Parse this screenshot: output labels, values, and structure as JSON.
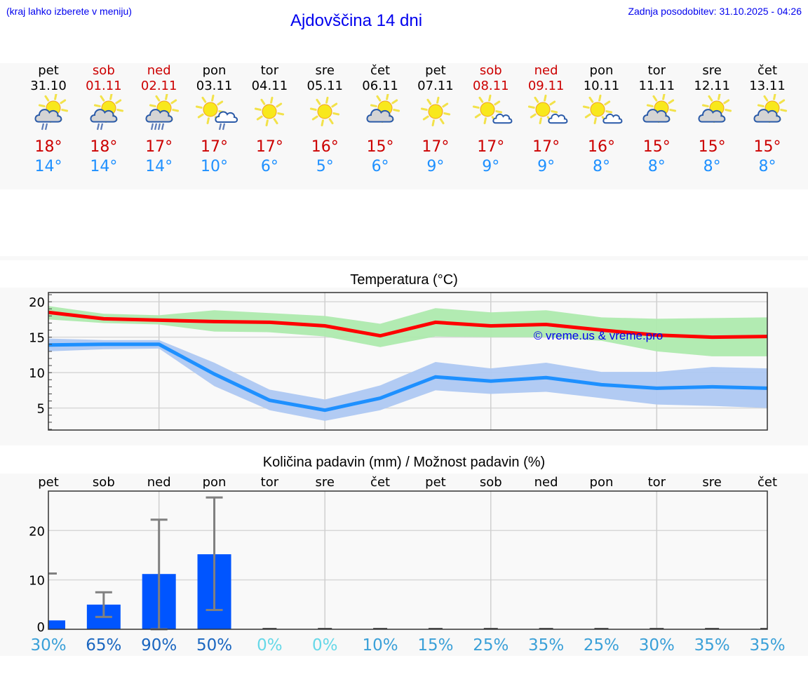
{
  "header": {
    "menu_hint": "(kraj lahko izberete v meniju)",
    "title": "Ajdovščina 14 dni",
    "last_update": "Zadnja posodobitev: 31.10.2025 - 04:26"
  },
  "colors": {
    "link_blue": "#0000ee",
    "weekend_red": "#cc0000",
    "tmax_red": "#cc0000",
    "tmin_blue": "#1e90ff",
    "max_line": "#ff0000",
    "max_band": "#aeeaae",
    "min_line": "#1e90ff",
    "min_band": "#aec8f2",
    "rain_bar": "#0055ff",
    "error_bar": "#808080"
  },
  "days": [
    {
      "name": "pet",
      "date": "31.10",
      "weekend": false,
      "icon": "partly-cloudy-light-rain-icon",
      "tmax": "18°",
      "tmin": "14°"
    },
    {
      "name": "sob",
      "date": "01.11",
      "weekend": true,
      "icon": "partly-cloudy-light-rain-icon",
      "tmax": "18°",
      "tmin": "14°"
    },
    {
      "name": "ned",
      "date": "02.11",
      "weekend": true,
      "icon": "partly-cloudy-rain-icon",
      "tmax": "17°",
      "tmin": "14°"
    },
    {
      "name": "pon",
      "date": "03.11",
      "weekend": false,
      "icon": "sun-cloud-light-rain-icon",
      "tmax": "17°",
      "tmin": "10°"
    },
    {
      "name": "tor",
      "date": "04.11",
      "weekend": false,
      "icon": "sun-icon",
      "tmax": "17°",
      "tmin": "6°"
    },
    {
      "name": "sre",
      "date": "05.11",
      "weekend": false,
      "icon": "sun-icon",
      "tmax": "16°",
      "tmin": "5°"
    },
    {
      "name": "čet",
      "date": "06.11",
      "weekend": false,
      "icon": "partly-cloudy-icon",
      "tmax": "15°",
      "tmin": "6°"
    },
    {
      "name": "pet",
      "date": "07.11",
      "weekend": false,
      "icon": "sun-icon",
      "tmax": "17°",
      "tmin": "9°"
    },
    {
      "name": "sob",
      "date": "08.11",
      "weekend": true,
      "icon": "mostly-sunny-icon",
      "tmax": "17°",
      "tmin": "9°"
    },
    {
      "name": "ned",
      "date": "09.11",
      "weekend": true,
      "icon": "mostly-sunny-icon",
      "tmax": "17°",
      "tmin": "9°"
    },
    {
      "name": "pon",
      "date": "10.11",
      "weekend": false,
      "icon": "mostly-sunny-icon",
      "tmax": "16°",
      "tmin": "8°"
    },
    {
      "name": "tor",
      "date": "11.11",
      "weekend": false,
      "icon": "partly-cloudy-icon",
      "tmax": "15°",
      "tmin": "8°"
    },
    {
      "name": "sre",
      "date": "12.11",
      "weekend": false,
      "icon": "partly-cloudy-icon",
      "tmax": "15°",
      "tmin": "8°"
    },
    {
      "name": "čet",
      "date": "13.11",
      "weekend": false,
      "icon": "partly-cloudy-icon",
      "tmax": "15°",
      "tmin": "8°"
    }
  ],
  "temp_chart": {
    "title": "Temperatura (°C)",
    "watermark": "© vreme.us & vreme.pro"
  },
  "rain_chart": {
    "title": "Količina padavin (mm) / Možnost padavin (%)"
  },
  "chart_data": [
    {
      "type": "line",
      "title": "Temperatura (°C)",
      "xlabel": "",
      "ylabel": "",
      "x": [
        "pet",
        "sob",
        "ned",
        "pon",
        "tor",
        "sre",
        "čet",
        "pet",
        "sob",
        "ned",
        "pon",
        "tor",
        "sre",
        "čet"
      ],
      "yticks": [
        5,
        10,
        15,
        20
      ],
      "ylim": [
        1.9,
        21.3
      ],
      "grid": true,
      "series": [
        {
          "name": "max",
          "color": "#ff0000",
          "values": [
            18.5,
            17.6,
            17.4,
            17.2,
            17.1,
            16.6,
            15.2,
            17.1,
            16.6,
            16.8,
            16.0,
            15.3,
            15.0,
            15.1
          ]
        },
        {
          "name": "max_band_upper",
          "values": [
            19.4,
            18.3,
            18.1,
            18.8,
            18.4,
            18.0,
            16.9,
            19.1,
            18.5,
            18.8,
            17.8,
            17.6,
            17.7,
            17.8
          ]
        },
        {
          "name": "max_band_lower",
          "values": [
            17.5,
            17.0,
            16.8,
            15.8,
            15.7,
            15.1,
            13.6,
            15.1,
            15.0,
            15.0,
            14.5,
            13.0,
            12.3,
            12.3
          ]
        },
        {
          "name": "min",
          "color": "#1e90ff",
          "values": [
            13.9,
            14.0,
            14.0,
            9.8,
            6.1,
            4.7,
            6.4,
            9.4,
            8.8,
            9.3,
            8.3,
            7.8,
            8.0,
            7.8
          ]
        },
        {
          "name": "min_band_upper",
          "values": [
            14.8,
            14.6,
            14.6,
            11.4,
            7.6,
            6.2,
            8.2,
            11.5,
            10.6,
            11.4,
            10.1,
            10.1,
            10.8,
            10.6
          ]
        },
        {
          "name": "min_band_lower",
          "values": [
            13.0,
            13.3,
            13.4,
            8.1,
            4.7,
            3.2,
            4.7,
            7.5,
            7.0,
            7.3,
            6.4,
            5.5,
            5.3,
            5.0
          ]
        }
      ]
    },
    {
      "type": "bar",
      "title": "Količina padavin (mm) / Možnost padavin (%)",
      "xlabel": "",
      "ylabel": "",
      "categories": [
        "pet",
        "sob",
        "ned",
        "pon",
        "tor",
        "sre",
        "čet",
        "pet",
        "sob",
        "ned",
        "pon",
        "tor",
        "sre",
        "čet"
      ],
      "yticks": [
        0,
        10,
        20
      ],
      "ylim": [
        0,
        28
      ],
      "grid": true,
      "series": [
        {
          "name": "precipitation_mm",
          "color": "#0055ff",
          "values": [
            1.8,
            5.0,
            11.2,
            15.2,
            0,
            0,
            0,
            0,
            0,
            0,
            0,
            0,
            0,
            0
          ]
        },
        {
          "name": "error_high_mm",
          "values": [
            11.3,
            7.5,
            22.2,
            26.7,
            0,
            0,
            0,
            0,
            0,
            0,
            0,
            0,
            0,
            0
          ]
        },
        {
          "name": "error_low_mm",
          "values": [
            0,
            2.5,
            0,
            3.9,
            0,
            0,
            0,
            0,
            0,
            0,
            0,
            0,
            0,
            0
          ]
        }
      ],
      "probability_labels": [
        "30%",
        "65%",
        "90%",
        "50%",
        "0%",
        "0%",
        "10%",
        "15%",
        "25%",
        "35%",
        "25%",
        "30%",
        "35%",
        "35%"
      ]
    }
  ]
}
